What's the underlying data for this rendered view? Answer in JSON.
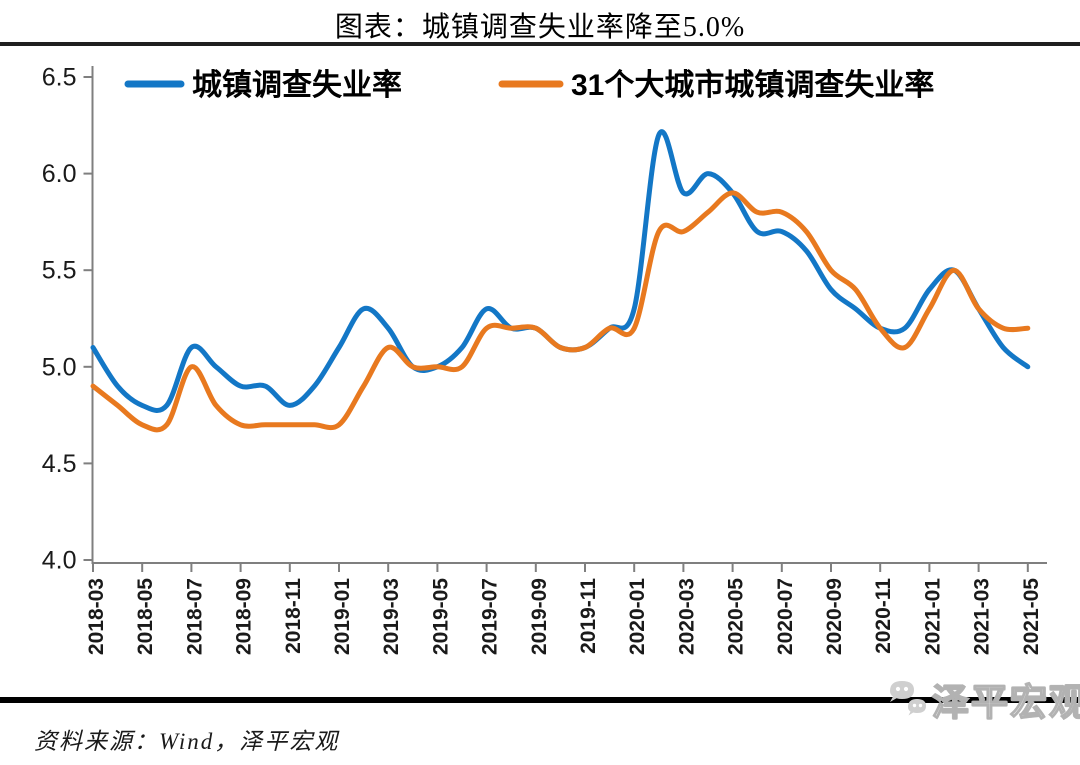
{
  "title": "图表：城镇调查失业率降至5.0%",
  "source_note": "资料来源：Wind，泽平宏观",
  "watermark": {
    "text": "泽平宏观",
    "logo": "wechat-chat-bubbles-logo"
  },
  "chart_data": {
    "type": "line",
    "x": [
      "2018-03",
      "2018-04",
      "2018-05",
      "2018-06",
      "2018-07",
      "2018-08",
      "2018-09",
      "2018-10",
      "2018-11",
      "2018-12",
      "2019-01",
      "2019-02",
      "2019-03",
      "2019-04",
      "2019-05",
      "2019-06",
      "2019-07",
      "2019-08",
      "2019-09",
      "2019-10",
      "2019-11",
      "2019-12",
      "2020-01",
      "2020-02",
      "2020-03",
      "2020-04",
      "2020-05",
      "2020-06",
      "2020-07",
      "2020-08",
      "2020-09",
      "2020-10",
      "2020-11",
      "2020-12",
      "2021-01",
      "2021-02",
      "2021-03",
      "2021-04",
      "2021-05"
    ],
    "x_tick_labels": [
      "2018-03",
      "2018-05",
      "2018-07",
      "2018-09",
      "2018-11",
      "2019-01",
      "2019-03",
      "2019-05",
      "2019-07",
      "2019-09",
      "2019-11",
      "2020-01",
      "2020-03",
      "2020-05",
      "2020-07",
      "2020-09",
      "2020-11",
      "2021-01",
      "2021-03",
      "2021-05"
    ],
    "series": [
      {
        "name": "城镇调查失业率",
        "color": "#1377C6",
        "values": [
          5.1,
          4.9,
          4.8,
          4.8,
          5.1,
          5.0,
          4.9,
          4.9,
          4.8,
          4.9,
          5.1,
          5.3,
          5.2,
          5.0,
          5.0,
          5.1,
          5.3,
          5.2,
          5.2,
          5.1,
          5.1,
          5.2,
          5.3,
          6.2,
          5.9,
          6.0,
          5.9,
          5.7,
          5.7,
          5.6,
          5.4,
          5.3,
          5.2,
          5.2,
          5.4,
          5.5,
          5.3,
          5.1,
          5.0
        ]
      },
      {
        "name": "31个大城市城镇调查失业率",
        "color": "#E8791F",
        "values": [
          4.9,
          4.8,
          4.7,
          4.7,
          5.0,
          4.8,
          4.7,
          4.7,
          4.7,
          4.7,
          4.7,
          4.9,
          5.1,
          5.0,
          5.0,
          5.0,
          5.2,
          5.2,
          5.2,
          5.1,
          5.1,
          5.2,
          5.2,
          5.7,
          5.7,
          5.8,
          5.9,
          5.8,
          5.8,
          5.7,
          5.5,
          5.4,
          5.2,
          5.1,
          5.3,
          5.5,
          5.3,
          5.2,
          5.2
        ]
      }
    ],
    "ylim": [
      4.0,
      6.5
    ],
    "y_ticks": [
      "4.0",
      "4.5",
      "5.0",
      "5.5",
      "6.0",
      "6.5"
    ],
    "grid": false,
    "legend_position": "top-inside",
    "axis_color": "#7f7f7f",
    "tick_label_color": "#1a1a1a"
  }
}
